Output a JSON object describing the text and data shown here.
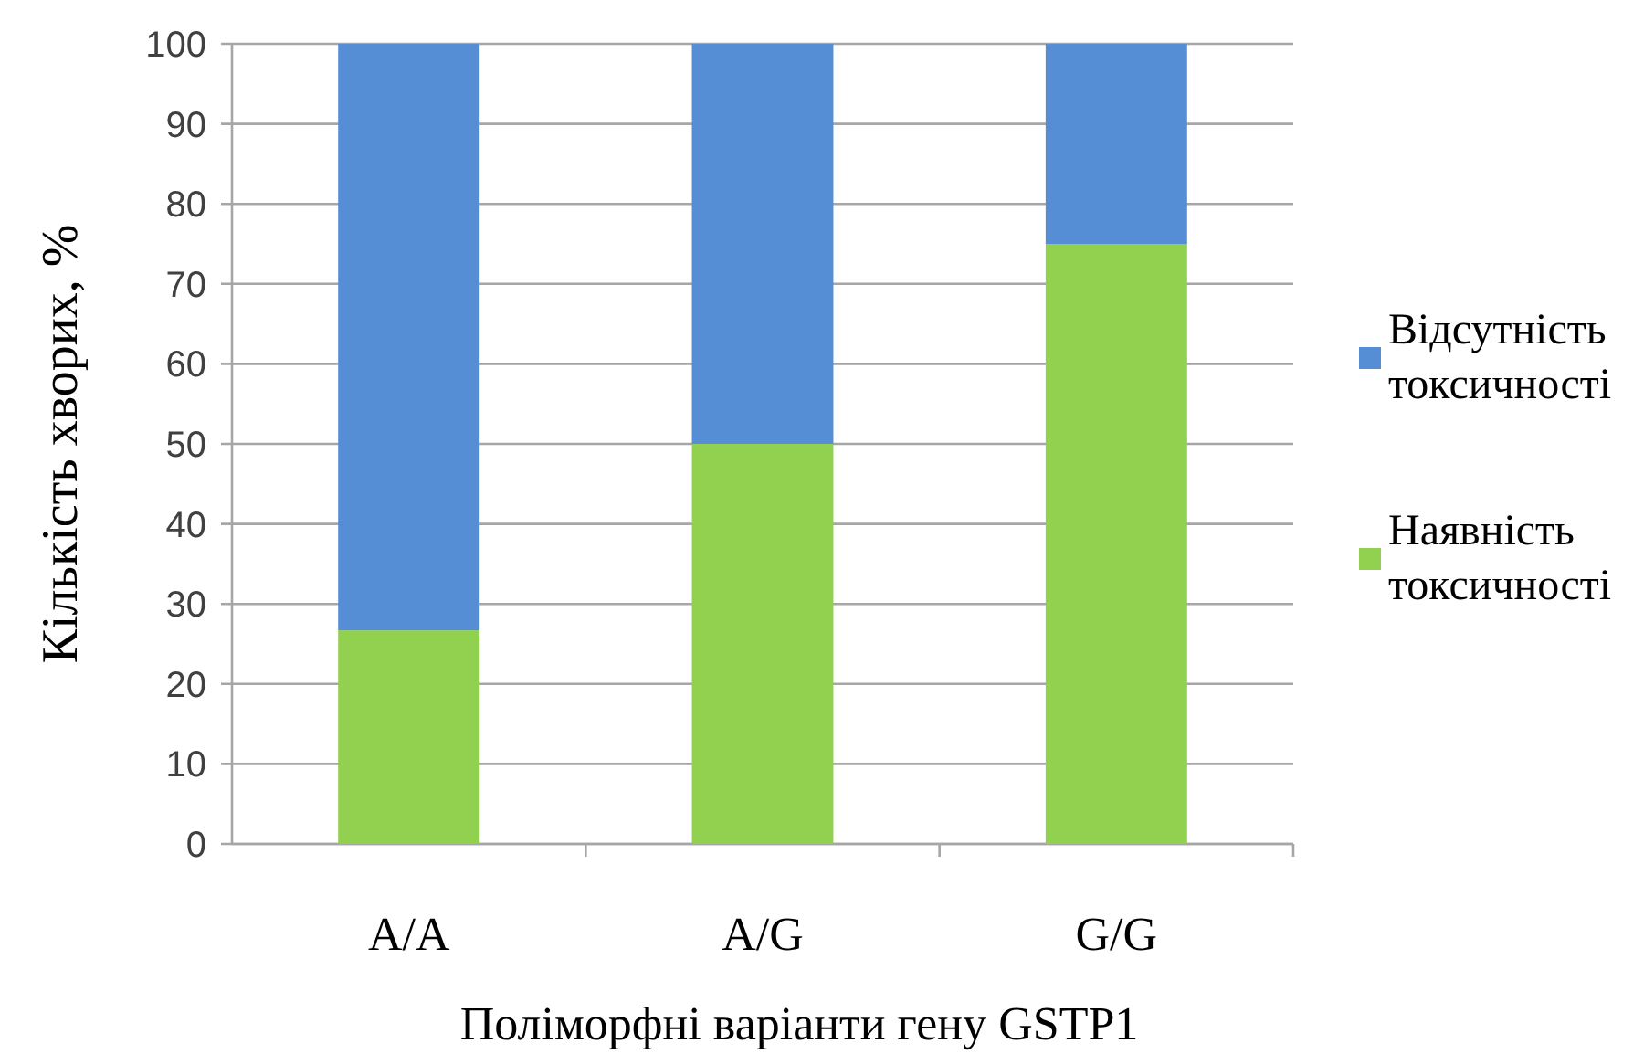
{
  "chart_data": {
    "type": "bar",
    "stacked": true,
    "xlabel": "Поліморфні варіанти гену GSTP1",
    "ylabel": "Кількість хворих, %",
    "categories": [
      "A/A",
      "A/G",
      "G/G"
    ],
    "series": [
      {
        "name": "Наявність токсичності",
        "color": "#92d050",
        "values": [
          26.7,
          50,
          75
        ]
      },
      {
        "name": "Відсутність токсичності",
        "color": "#558ed5",
        "values": [
          73.3,
          50,
          25
        ]
      }
    ],
    "ylim": [
      0,
      100
    ],
    "yticks": [
      0,
      10,
      20,
      30,
      40,
      50,
      60,
      70,
      80,
      90,
      100
    ],
    "grid": "y",
    "legend": "right"
  }
}
